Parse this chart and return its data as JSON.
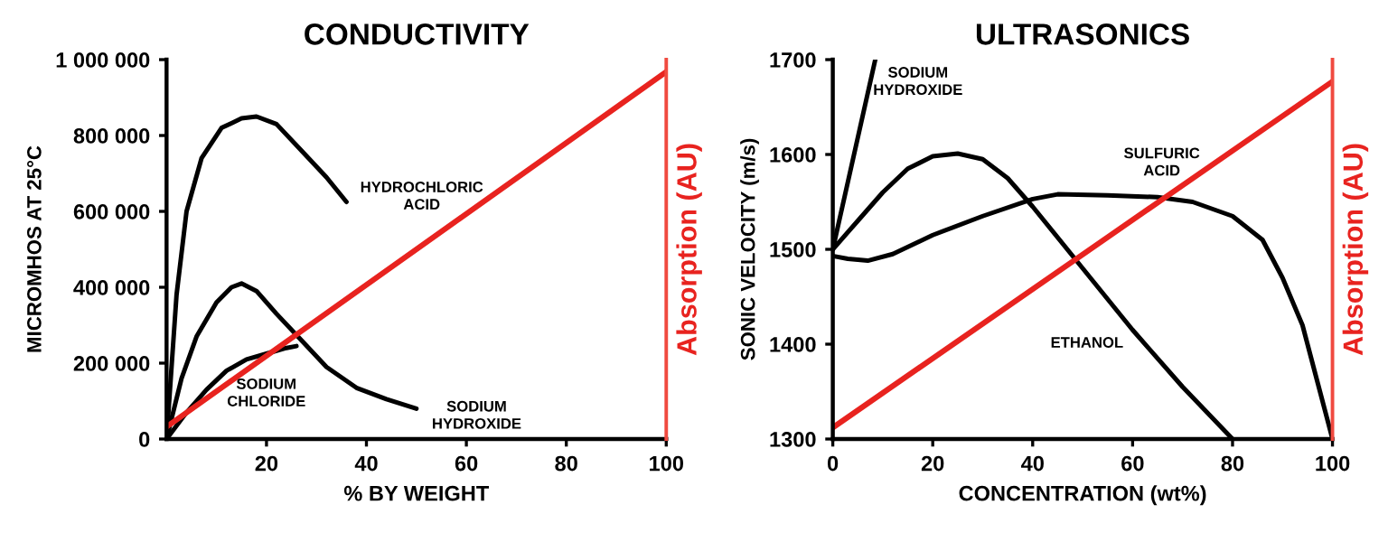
{
  "chart_data": [
    {
      "type": "line",
      "title": "CONDUCTIVITY",
      "xlabel": "% BY WEIGHT",
      "ylabel": "MICROMHOS AT 25°C",
      "y2label": "Absorption (AU)",
      "xlim": [
        0,
        100
      ],
      "xticks": [
        20,
        40,
        60,
        80,
        100
      ],
      "ylim": [
        0,
        1000000
      ],
      "yticks": [
        {
          "value": 0,
          "label": "0"
        },
        {
          "value": 200000,
          "label": "200 000"
        },
        {
          "value": 400000,
          "label": "400 000"
        },
        {
          "value": 600000,
          "label": "600 000"
        },
        {
          "value": 800000,
          "label": "800 000"
        },
        {
          "value": 1000000,
          "label": "1 000 000"
        }
      ],
      "series": [
        {
          "name": "HYDROCHLORIC\nACID",
          "color": "#000000",
          "x": [
            0,
            2,
            4,
            7,
            11,
            15,
            18,
            22,
            27,
            32,
            36
          ],
          "values": [
            0,
            380000,
            600000,
            740000,
            820000,
            845000,
            850000,
            830000,
            760000,
            690000,
            625000
          ]
        },
        {
          "name": "SODIUM\nHYDROXIDE",
          "color": "#000000",
          "x": [
            0,
            3,
            6,
            10,
            13,
            15,
            18,
            22,
            27,
            32,
            38,
            44,
            50
          ],
          "values": [
            0,
            160000,
            270000,
            360000,
            400000,
            410000,
            390000,
            330000,
            260000,
            190000,
            135000,
            105000,
            80000
          ]
        },
        {
          "name": "SODIUM\nCHLORIDE",
          "color": "#000000",
          "x": [
            0,
            4,
            8,
            12,
            16,
            20,
            24,
            26
          ],
          "values": [
            0,
            70000,
            130000,
            180000,
            210000,
            225000,
            240000,
            245000
          ]
        },
        {
          "color": "#e8231f",
          "x": [
            0,
            100
          ],
          "values": [
            32000,
            968000
          ]
        }
      ]
    },
    {
      "type": "line",
      "title": "ULTRASONICS",
      "xlabel": "CONCENTRATION (wt%)",
      "ylabel": "SONIC VELOCITY (m/s)",
      "y2label": "Absorption (AU)",
      "xlim": [
        0,
        100
      ],
      "xticks": [
        0,
        20,
        40,
        60,
        80,
        100
      ],
      "ylim": [
        1300,
        1700
      ],
      "yticks": [
        1300,
        1400,
        1500,
        1600,
        1700
      ],
      "series": [
        {
          "name": "SODIUM\nHYDROXIDE",
          "color": "#000000",
          "x": [
            0,
            8.5
          ],
          "values": [
            1500,
            1700
          ]
        },
        {
          "name": "ETHANOL",
          "color": "#000000",
          "x": [
            0,
            5,
            10,
            15,
            20,
            25,
            30,
            35,
            40,
            50,
            60,
            70,
            80
          ],
          "values": [
            1500,
            1530,
            1560,
            1585,
            1598,
            1601,
            1595,
            1575,
            1545,
            1480,
            1415,
            1355,
            1300
          ]
        },
        {
          "name": "SULFURIC\nACID",
          "color": "#000000",
          "x": [
            0,
            3,
            7,
            12,
            20,
            30,
            40,
            45,
            55,
            65,
            72,
            80,
            86,
            90,
            94,
            97,
            100
          ],
          "values": [
            1493,
            1490,
            1488,
            1495,
            1515,
            1535,
            1553,
            1558,
            1557,
            1555,
            1550,
            1535,
            1510,
            1470,
            1420,
            1360,
            1300
          ]
        },
        {
          "color": "#e8231f",
          "x": [
            0,
            100
          ],
          "values": [
            1312,
            1677
          ]
        }
      ]
    }
  ]
}
